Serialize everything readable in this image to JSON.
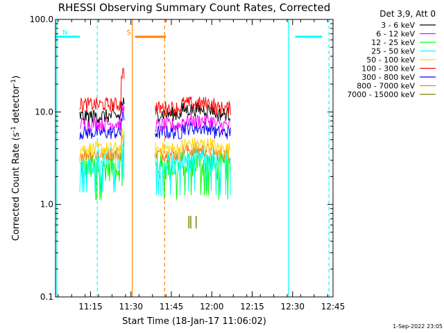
{
  "chart_data": {
    "type": "line",
    "title": "RHESSI Observing Summary Count Rates, Corrected",
    "xlabel": "Start Time (18-Jan-17 11:06:02)",
    "ylabel": "Corrected Count Rate (s⁻¹ detector⁻¹)",
    "ylabel_parts": {
      "prefix": "Corrected Count Rate (s",
      "exp1": "-1",
      "middle": " detector",
      "exp2": "-1",
      "suffix": ")"
    },
    "yscale": "log",
    "ylim": [
      0.1,
      100
    ],
    "xlim_minutes": [
      -4,
      99
    ],
    "x_tick_labels": [
      "11:15",
      "11:30",
      "11:45",
      "12:00",
      "12:15",
      "12:30",
      "12:45"
    ],
    "x_tick_minutes": [
      9,
      24,
      39,
      54,
      69,
      84,
      99
    ],
    "y_tick_labels": [
      "0.1",
      "1.0",
      "10.0",
      "100.0"
    ],
    "y_tick_values": [
      0.1,
      1,
      10,
      100
    ],
    "legend_title": "Det 3,9, Att 0",
    "legend_position": "top-right",
    "footer": "1-Sep-2022 23:05",
    "series": [
      {
        "name": "3 - 6 keV",
        "color": "#000000",
        "seg1": 9.0,
        "seg2": 9.5
      },
      {
        "name": "6 - 12 keV",
        "color": "#ff00ff",
        "seg1": 7.5,
        "seg2": 7.2
      },
      {
        "name": "12 - 25 keV",
        "color": "#00ff00",
        "seg1": 2.5,
        "seg2": 2.5
      },
      {
        "name": "25 - 50 keV",
        "color": "#00ffff",
        "seg1": 3.0,
        "seg2": 2.8
      },
      {
        "name": "50 - 100 keV",
        "color": "#ffd700",
        "seg1": 4.0,
        "seg2": 4.0
      },
      {
        "name": "100 - 300 keV",
        "color": "#ff0000",
        "seg1": 12.0,
        "seg2": 11.0
      },
      {
        "name": "300 - 800 keV",
        "color": "#0000ff",
        "seg1": 6.0,
        "seg2": 6.0
      },
      {
        "name": "800 - 7000 keV",
        "color": "#ff8000",
        "seg1": 3.5,
        "seg2": 3.5
      },
      {
        "name": "7000 - 15000 keV",
        "color": "#808000",
        "seg1": 0.7,
        "seg2": 0.7
      }
    ],
    "data_segments_minutes": [
      [
        5,
        21.5
      ],
      [
        33,
        61
      ]
    ],
    "flag_bars": [
      {
        "label": "N",
        "start": -4,
        "end": 5,
        "value": 65,
        "color": "#00ffff"
      },
      {
        "label": "",
        "start": 85,
        "end": 95,
        "value": 65,
        "color": "#00ffff"
      },
      {
        "label": "S",
        "start": 25.5,
        "end": 37,
        "value": 65,
        "color": "#ff8000"
      }
    ],
    "vertical_markers": [
      {
        "minute": -3.5,
        "style": "solid",
        "color": "#00ffff"
      },
      {
        "minute": 11.5,
        "style": "dashed",
        "color": "#00ffff"
      },
      {
        "minute": 24.5,
        "style": "solid",
        "color": "#ff8000"
      },
      {
        "minute": 36.5,
        "style": "dashed",
        "color": "#ff8000"
      },
      {
        "minute": 82.5,
        "style": "solid",
        "color": "#00ffff"
      },
      {
        "minute": 97.5,
        "style": "dashed",
        "color": "#00ffff"
      }
    ]
  }
}
